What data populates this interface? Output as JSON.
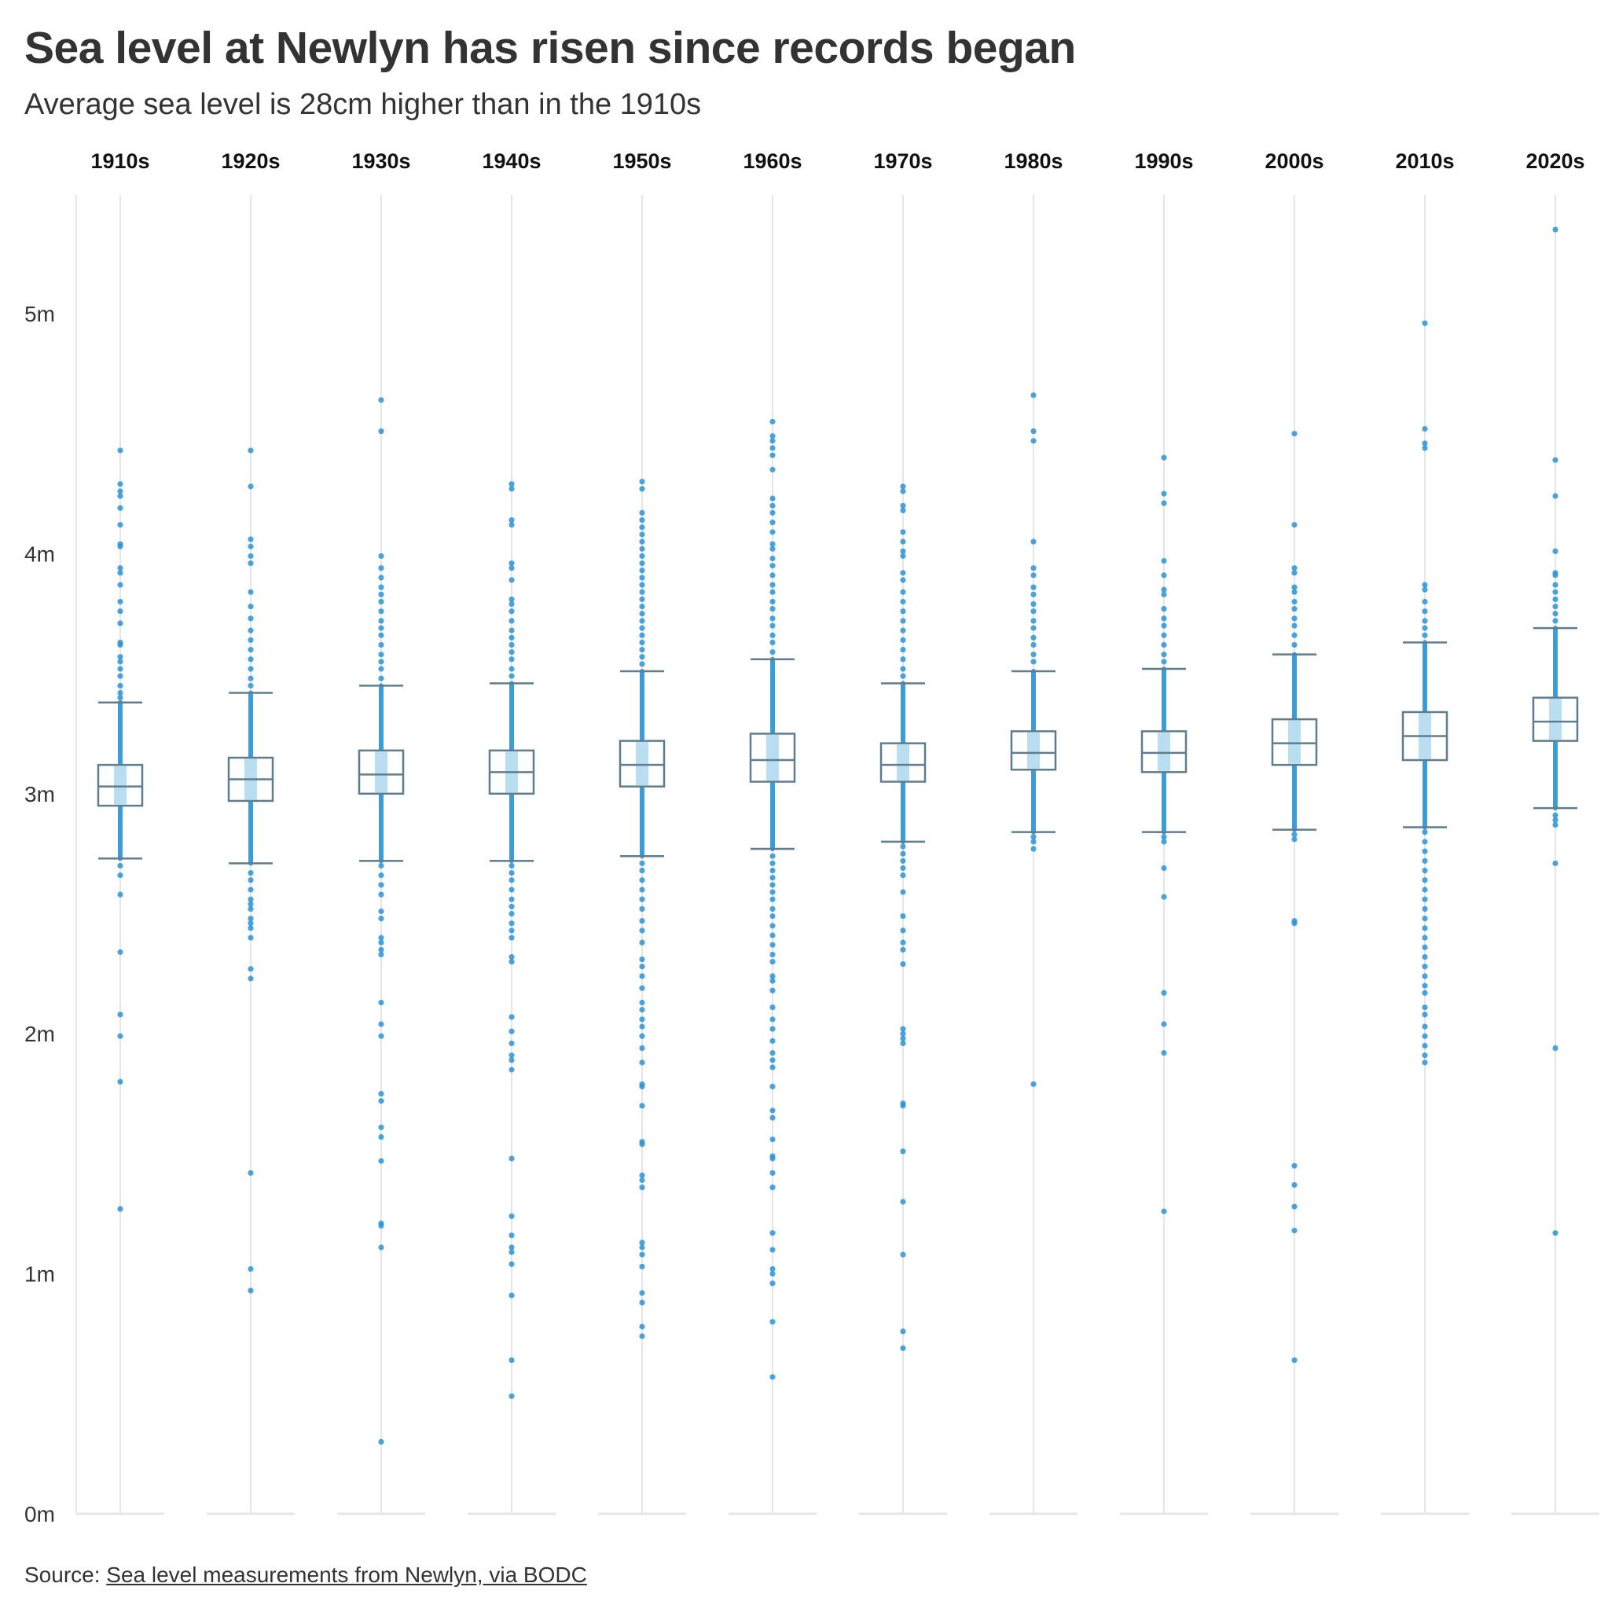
{
  "title": "Sea level at Newlyn has risen since records began",
  "subtitle": "Average sea level is 28cm higher than in the 1910s",
  "source": {
    "prefix": "Source: ",
    "link_text": "Sea level measurements from Newlyn, via BODC"
  },
  "colors": {
    "points": "#2b93d2",
    "box_stroke": "#5f7d8f",
    "median_band": "#b9ddf1",
    "grid": "#e6e6e6",
    "text": "#333333"
  },
  "chart_data": {
    "type": "box",
    "ylabel": "",
    "ylim": [
      0,
      5.5
    ],
    "y_ticks": [
      0,
      1,
      2,
      3,
      4,
      5
    ],
    "y_tick_labels": [
      "0m",
      "1m",
      "2m",
      "3m",
      "4m",
      "5m"
    ],
    "categories": [
      "1910s",
      "1920s",
      "1930s",
      "1940s",
      "1950s",
      "1960s",
      "1970s",
      "1980s",
      "1990s",
      "2000s",
      "2010s",
      "2020s"
    ],
    "boxes": [
      {
        "decade": "1910s",
        "whisker_low": 2.73,
        "q1": 2.95,
        "median": 3.03,
        "q3": 3.12,
        "whisker_high": 3.38,
        "outliers": [
          4.43,
          4.29,
          4.26,
          4.24,
          4.19,
          4.12,
          4.04,
          4.03,
          3.94,
          3.92,
          3.87,
          3.8,
          3.76,
          3.71,
          3.63,
          3.62,
          3.57,
          3.55,
          3.52,
          3.49,
          3.45,
          3.42,
          3.4,
          2.7,
          2.66,
          2.58,
          2.34,
          2.08,
          1.99,
          1.8,
          1.27
        ]
      },
      {
        "decade": "1920s",
        "whisker_low": 2.71,
        "q1": 2.97,
        "median": 3.06,
        "q3": 3.15,
        "whisker_high": 3.42,
        "outliers": [
          4.43,
          4.28,
          4.06,
          4.03,
          3.99,
          3.96,
          3.84,
          3.78,
          3.73,
          3.68,
          3.64,
          3.6,
          3.56,
          3.52,
          3.48,
          3.45,
          2.67,
          2.64,
          2.6,
          2.56,
          2.54,
          2.52,
          2.48,
          2.46,
          2.44,
          2.4,
          2.27,
          2.23,
          1.42,
          1.02,
          0.93
        ]
      },
      {
        "decade": "1930s",
        "whisker_low": 2.72,
        "q1": 3.0,
        "median": 3.08,
        "q3": 3.18,
        "whisker_high": 3.45,
        "outliers": [
          4.64,
          4.51,
          3.99,
          3.94,
          3.9,
          3.86,
          3.83,
          3.8,
          3.76,
          3.72,
          3.69,
          3.66,
          3.62,
          3.58,
          3.55,
          3.52,
          3.48,
          2.7,
          2.66,
          2.62,
          2.58,
          2.51,
          2.48,
          2.4,
          2.38,
          2.35,
          2.33,
          2.13,
          2.04,
          1.99,
          1.75,
          1.72,
          1.61,
          1.57,
          1.47,
          1.21,
          1.2,
          1.11,
          0.3
        ]
      },
      {
        "decade": "1940s",
        "whisker_low": 2.72,
        "q1": 3.0,
        "median": 3.09,
        "q3": 3.18,
        "whisker_high": 3.46,
        "outliers": [
          4.29,
          4.27,
          4.14,
          4.12,
          3.96,
          3.94,
          3.89,
          3.81,
          3.79,
          3.76,
          3.72,
          3.68,
          3.65,
          3.62,
          3.59,
          3.56,
          3.52,
          3.49,
          2.7,
          2.67,
          2.64,
          2.6,
          2.56,
          2.53,
          2.5,
          2.46,
          2.43,
          2.4,
          2.32,
          2.3,
          2.07,
          2.01,
          1.96,
          1.91,
          1.89,
          1.85,
          1.48,
          1.24,
          1.16,
          1.11,
          1.09,
          1.04,
          0.91,
          0.64,
          0.49
        ]
      },
      {
        "decade": "1950s",
        "whisker_low": 2.74,
        "q1": 3.03,
        "median": 3.12,
        "q3": 3.22,
        "whisker_high": 3.51,
        "outliers": [
          4.3,
          4.27,
          4.17,
          4.14,
          4.11,
          4.08,
          4.05,
          4.02,
          3.99,
          3.96,
          3.93,
          3.9,
          3.87,
          3.84,
          3.81,
          3.78,
          3.75,
          3.72,
          3.69,
          3.66,
          3.63,
          3.6,
          3.57,
          3.54,
          2.71,
          2.68,
          2.64,
          2.6,
          2.56,
          2.52,
          2.47,
          2.43,
          2.38,
          2.31,
          2.28,
          2.24,
          2.19,
          2.13,
          2.1,
          2.06,
          2.03,
          1.99,
          1.94,
          1.88,
          1.79,
          1.78,
          1.7,
          1.55,
          1.54,
          1.41,
          1.39,
          1.36,
          1.13,
          1.11,
          1.08,
          1.03,
          0.92,
          0.88,
          0.78,
          0.74
        ]
      },
      {
        "decade": "1960s",
        "whisker_low": 2.77,
        "q1": 3.05,
        "median": 3.14,
        "q3": 3.25,
        "whisker_high": 3.56,
        "outliers": [
          4.55,
          4.49,
          4.47,
          4.44,
          4.41,
          4.35,
          4.23,
          4.2,
          4.17,
          4.13,
          4.09,
          4.04,
          4.02,
          3.98,
          3.95,
          3.91,
          3.87,
          3.84,
          3.8,
          3.77,
          3.73,
          3.7,
          3.66,
          3.63,
          3.59,
          2.74,
          2.71,
          2.68,
          2.65,
          2.62,
          2.59,
          2.56,
          2.52,
          2.49,
          2.45,
          2.41,
          2.37,
          2.33,
          2.3,
          2.24,
          2.22,
          2.18,
          2.11,
          2.06,
          2.02,
          1.97,
          1.92,
          1.89,
          1.86,
          1.78,
          1.68,
          1.65,
          1.56,
          1.49,
          1.48,
          1.42,
          1.36,
          1.17,
          1.1,
          1.02,
          1.0,
          0.96,
          0.8,
          0.57
        ]
      },
      {
        "decade": "1970s",
        "whisker_low": 2.8,
        "q1": 3.05,
        "median": 3.12,
        "q3": 3.21,
        "whisker_high": 3.46,
        "outliers": [
          4.28,
          4.26,
          4.2,
          4.18,
          4.09,
          4.05,
          4.01,
          3.99,
          3.92,
          3.89,
          3.84,
          3.8,
          3.76,
          3.72,
          3.68,
          3.64,
          3.6,
          3.56,
          3.52,
          3.49,
          2.78,
          2.75,
          2.72,
          2.69,
          2.66,
          2.59,
          2.49,
          2.43,
          2.38,
          2.35,
          2.29,
          2.02,
          2.0,
          1.98,
          1.96,
          1.71,
          1.7,
          1.51,
          1.3,
          1.08,
          0.76,
          0.69
        ]
      },
      {
        "decade": "1980s",
        "whisker_low": 2.84,
        "q1": 3.1,
        "median": 3.17,
        "q3": 3.26,
        "whisker_high": 3.51,
        "outliers": [
          4.66,
          4.51,
          4.47,
          4.05,
          3.94,
          3.91,
          3.86,
          3.83,
          3.79,
          3.76,
          3.72,
          3.69,
          3.65,
          3.62,
          3.58,
          3.55,
          2.82,
          2.8,
          2.77,
          1.79
        ]
      },
      {
        "decade": "1990s",
        "whisker_low": 2.84,
        "q1": 3.09,
        "median": 3.17,
        "q3": 3.26,
        "whisker_high": 3.52,
        "outliers": [
          4.4,
          4.25,
          4.21,
          3.97,
          3.91,
          3.85,
          3.83,
          3.77,
          3.73,
          3.7,
          3.66,
          3.62,
          3.58,
          3.55,
          2.82,
          2.8,
          2.69,
          2.57,
          2.17,
          2.04,
          1.92,
          1.26
        ]
      },
      {
        "decade": "2000s",
        "whisker_low": 2.85,
        "q1": 3.12,
        "median": 3.21,
        "q3": 3.31,
        "whisker_high": 3.58,
        "outliers": [
          4.5,
          4.12,
          3.94,
          3.92,
          3.86,
          3.84,
          3.8,
          3.77,
          3.73,
          3.7,
          3.66,
          3.62,
          2.83,
          2.81,
          2.47,
          2.46,
          1.45,
          1.37,
          1.28,
          1.18,
          0.64
        ]
      },
      {
        "decade": "2010s",
        "whisker_low": 2.86,
        "q1": 3.14,
        "median": 3.24,
        "q3": 3.34,
        "whisker_high": 3.63,
        "outliers": [
          4.96,
          4.52,
          4.46,
          4.44,
          3.87,
          3.85,
          3.8,
          3.76,
          3.72,
          3.69,
          3.66,
          2.84,
          2.8,
          2.76,
          2.72,
          2.68,
          2.64,
          2.6,
          2.56,
          2.52,
          2.48,
          2.44,
          2.4,
          2.36,
          2.32,
          2.28,
          2.24,
          2.2,
          2.17,
          2.11,
          2.08,
          2.03,
          1.99,
          1.95,
          1.91,
          1.88
        ]
      },
      {
        "decade": "2020s",
        "whisker_low": 2.94,
        "q1": 3.22,
        "median": 3.3,
        "q3": 3.4,
        "whisker_high": 3.69,
        "outliers": [
          5.35,
          4.39,
          4.24,
          4.01,
          3.92,
          3.91,
          3.87,
          3.84,
          3.81,
          3.78,
          3.75,
          3.72,
          2.91,
          2.89,
          2.87,
          2.71,
          1.94,
          1.17
        ]
      }
    ]
  }
}
